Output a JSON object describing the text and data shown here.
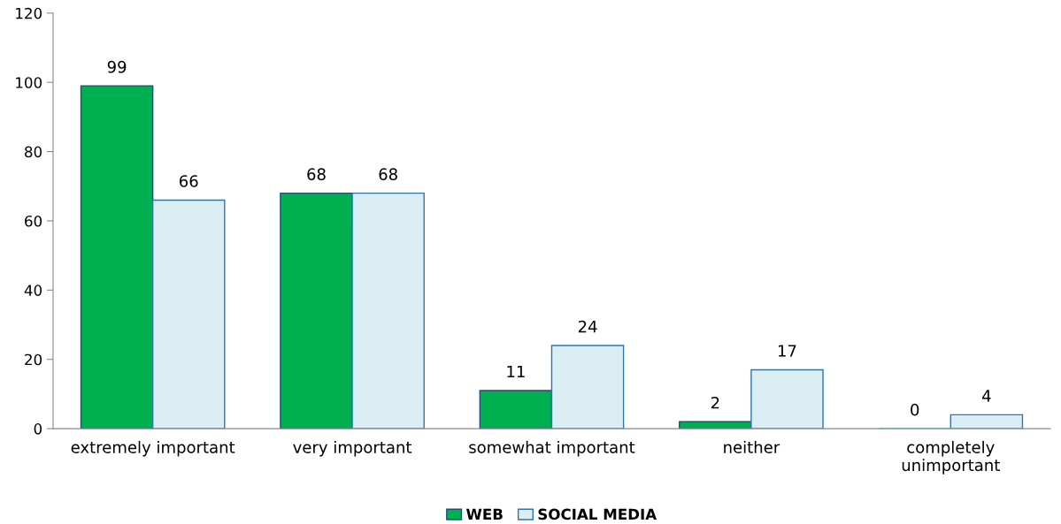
{
  "chart_data": {
    "type": "bar",
    "categories": [
      "extremely important",
      "very important",
      "somewhat important",
      "neither",
      "completely\nunimportant"
    ],
    "series": [
      {
        "name": "WEB",
        "color": "#00b050",
        "values": [
          99,
          68,
          11,
          2,
          0
        ]
      },
      {
        "name": "SOCIAL MEDIA",
        "color": "#dbeef4",
        "values": [
          66,
          68,
          24,
          17,
          4
        ]
      }
    ],
    "ylim": [
      0,
      120
    ],
    "yticks": [
      0,
      20,
      40,
      60,
      80,
      100,
      120
    ],
    "data_labels": true,
    "legend": "bottom",
    "grid": false
  }
}
